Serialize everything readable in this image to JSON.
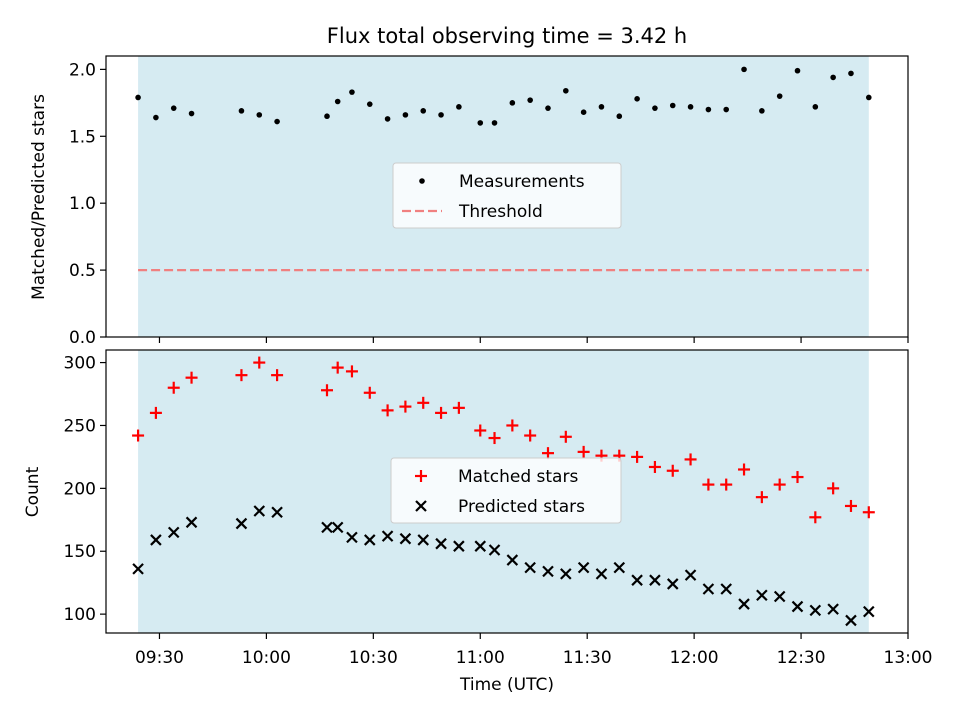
{
  "chart_data": {
    "type": "scatter",
    "title": "Flux total observing time = 3.42 h",
    "xlabel": "Time (UTC)",
    "x_tick_labels": [
      "09:30",
      "10:00",
      "10:30",
      "11:00",
      "11:30",
      "12:00",
      "12:30",
      "13:00"
    ],
    "x_ticks": [
      "09:30",
      "10:00",
      "10:30",
      "11:00",
      "11:30",
      "12:00",
      "12:30",
      "13:00"
    ],
    "xlim": [
      "09:15",
      "13:00"
    ],
    "shaded_span": [
      "09:24",
      "12:49"
    ],
    "shaded_color": "#add8e6",
    "times": [
      "09:24",
      "09:29",
      "09:34",
      "09:39",
      "09:53",
      "09:58",
      "10:03",
      "10:17",
      "10:20",
      "10:24",
      "10:29",
      "10:34",
      "10:39",
      "10:44",
      "10:49",
      "10:54",
      "11:00",
      "11:04",
      "11:09",
      "11:14",
      "11:19",
      "11:24",
      "11:29",
      "11:34",
      "11:39",
      "11:44",
      "11:49",
      "11:54",
      "11:59",
      "12:04",
      "12:09",
      "12:14",
      "12:19",
      "12:24",
      "12:29",
      "12:34",
      "12:39",
      "12:44",
      "12:49"
    ],
    "panels": [
      {
        "ylabel": "Matched/Predicted stars",
        "ylim": [
          0,
          2.1
        ],
        "yticks": [
          0.0,
          0.5,
          1.0,
          1.5,
          2.0
        ],
        "ytick_labels": [
          "0.0",
          "0.5",
          "1.0",
          "1.5",
          "2.0"
        ],
        "legend_position": "center",
        "series": [
          {
            "name": "Measurements",
            "marker": "dot",
            "color": "#000000",
            "values": [
              1.79,
              1.64,
              1.71,
              1.67,
              1.69,
              1.66,
              1.61,
              1.65,
              1.76,
              1.83,
              1.74,
              1.63,
              1.66,
              1.69,
              1.66,
              1.72,
              1.6,
              1.6,
              1.75,
              1.77,
              1.71,
              1.84,
              1.68,
              1.72,
              1.65,
              1.78,
              1.71,
              1.73,
              1.72,
              1.7,
              1.7,
              2.0,
              1.69,
              1.8,
              1.99,
              1.72,
              1.94,
              1.97,
              1.79
            ]
          },
          {
            "name": "Threshold",
            "marker": "dashed-line",
            "color": "#f08080",
            "value": 0.5
          }
        ]
      },
      {
        "ylabel": "Count",
        "ylim": [
          85,
          310
        ],
        "yticks": [
          100,
          150,
          200,
          250,
          300
        ],
        "ytick_labels": [
          "100",
          "150",
          "200",
          "250",
          "300"
        ],
        "legend_position": "center",
        "series": [
          {
            "name": "Matched stars",
            "marker": "plus",
            "color": "#ff0000",
            "values": [
              242,
              260,
              280,
              288,
              290,
              300,
              290,
              278,
              296,
              293,
              276,
              262,
              265,
              268,
              260,
              264,
              246,
              240,
              250,
              242,
              228,
              241,
              229,
              226,
              226,
              225,
              217,
              214,
              223,
              203,
              203,
              215,
              193,
              203,
              209,
              177,
              200,
              186,
              181
            ]
          },
          {
            "name": "Predicted stars",
            "marker": "x",
            "color": "#000000",
            "values": [
              136,
              159,
              165,
              173,
              172,
              182,
              181,
              169,
              169,
              161,
              159,
              162,
              160,
              159,
              156,
              154,
              154,
              151,
              143,
              137,
              134,
              132,
              137,
              132,
              137,
              127,
              127,
              124,
              131,
              120,
              120,
              108,
              115,
              114,
              106,
              103,
              104,
              95,
              102
            ]
          }
        ]
      }
    ]
  }
}
